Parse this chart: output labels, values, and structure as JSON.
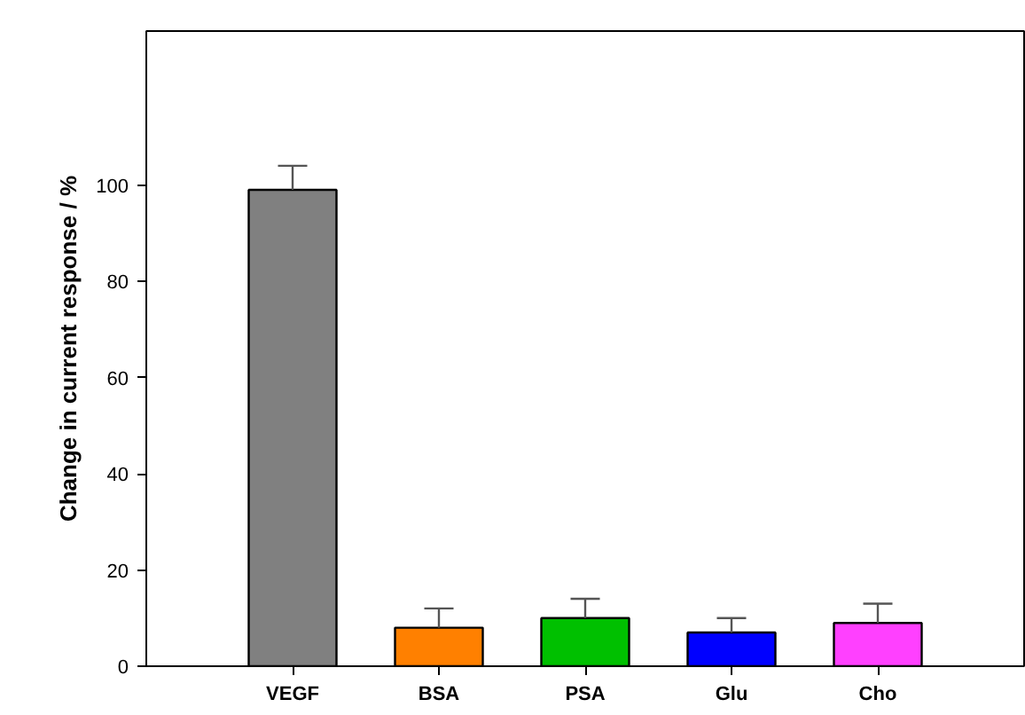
{
  "chart_data": {
    "type": "bar",
    "ylabel": "Change in current response / %",
    "categories": [
      "VEGF",
      "BSA",
      "PSA",
      "Glu",
      "Cho"
    ],
    "values": [
      99,
      8,
      10,
      7,
      9
    ],
    "colors": [
      "#808080",
      "#ff8000",
      "#00c000",
      "#0000ff",
      "#ff40ff"
    ],
    "errors": [
      [
        99,
        104
      ],
      [
        8,
        12
      ],
      [
        10,
        14
      ],
      [
        7,
        10
      ],
      [
        9,
        13
      ]
    ],
    "ylim": [
      0,
      132
    ],
    "yticks": [
      0,
      20,
      40,
      60,
      80,
      100
    ],
    "grid": false
  }
}
